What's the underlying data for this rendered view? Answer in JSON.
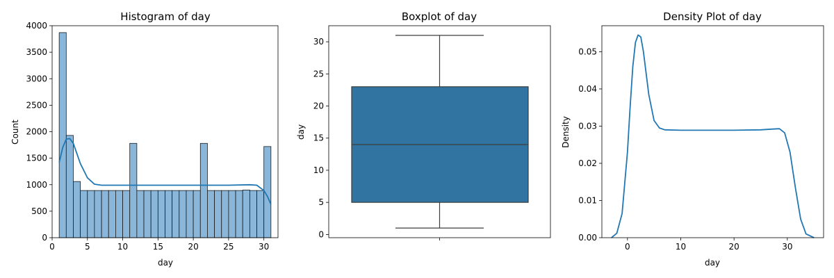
{
  "chart_data": [
    {
      "type": "bar",
      "title": "Histogram of day",
      "xlabel": "day",
      "ylabel": "Count",
      "xlim": [
        0,
        32
      ],
      "ylim": [
        0,
        4000
      ],
      "xticks": [
        0,
        5,
        10,
        15,
        20,
        25,
        30
      ],
      "yticks": [
        0,
        500,
        1000,
        1500,
        2000,
        2500,
        3000,
        3500,
        4000
      ],
      "bin_width": 1,
      "bins": [
        {
          "x": 1,
          "count": 3870
        },
        {
          "x": 2,
          "count": 1930
        },
        {
          "x": 3,
          "count": 1060
        },
        {
          "x": 4,
          "count": 890
        },
        {
          "x": 5,
          "count": 890
        },
        {
          "x": 6,
          "count": 890
        },
        {
          "x": 7,
          "count": 890
        },
        {
          "x": 8,
          "count": 890
        },
        {
          "x": 9,
          "count": 890
        },
        {
          "x": 10,
          "count": 890
        },
        {
          "x": 11,
          "count": 1780
        },
        {
          "x": 12,
          "count": 890
        },
        {
          "x": 13,
          "count": 890
        },
        {
          "x": 14,
          "count": 890
        },
        {
          "x": 15,
          "count": 890
        },
        {
          "x": 16,
          "count": 890
        },
        {
          "x": 17,
          "count": 890
        },
        {
          "x": 18,
          "count": 890
        },
        {
          "x": 19,
          "count": 890
        },
        {
          "x": 20,
          "count": 890
        },
        {
          "x": 21,
          "count": 1780
        },
        {
          "x": 22,
          "count": 890
        },
        {
          "x": 23,
          "count": 890
        },
        {
          "x": 24,
          "count": 890
        },
        {
          "x": 25,
          "count": 890
        },
        {
          "x": 26,
          "count": 890
        },
        {
          "x": 27,
          "count": 900
        },
        {
          "x": 28,
          "count": 890
        },
        {
          "x": 29,
          "count": 890
        },
        {
          "x": 30,
          "count": 1720
        }
      ],
      "kde": [
        {
          "x": 1.0,
          "y": 1420
        },
        {
          "x": 1.5,
          "y": 1700
        },
        {
          "x": 2.0,
          "y": 1860
        },
        {
          "x": 2.5,
          "y": 1870
        },
        {
          "x": 3.0,
          "y": 1780
        },
        {
          "x": 4.0,
          "y": 1400
        },
        {
          "x": 5.0,
          "y": 1130
        },
        {
          "x": 6.0,
          "y": 1010
        },
        {
          "x": 7.0,
          "y": 990
        },
        {
          "x": 10.0,
          "y": 990
        },
        {
          "x": 15.0,
          "y": 990
        },
        {
          "x": 20.0,
          "y": 990
        },
        {
          "x": 25.0,
          "y": 990
        },
        {
          "x": 28.0,
          "y": 1000
        },
        {
          "x": 29.0,
          "y": 990
        },
        {
          "x": 30.0,
          "y": 890
        },
        {
          "x": 30.5,
          "y": 780
        },
        {
          "x": 31.0,
          "y": 630
        }
      ],
      "bar_color": "#8ab6d9",
      "kde_color": "#1f77b4"
    },
    {
      "type": "box",
      "title": "Boxplot of day",
      "ylabel": "day",
      "ylim": [
        -0.5,
        32.5
      ],
      "yticks": [
        0,
        5,
        10,
        15,
        20,
        25,
        30
      ],
      "min": 1,
      "q1": 5,
      "median": 14,
      "q3": 23,
      "max": 31,
      "box_color": "#3274a1"
    },
    {
      "type": "line",
      "title": "Density Plot of day",
      "xlabel": "day",
      "ylabel": "Density",
      "xlim": [
        -4.8,
        36.8
      ],
      "ylim": [
        0,
        0.057
      ],
      "xticks": [
        0,
        10,
        20,
        30
      ],
      "yticks": [
        0.0,
        0.01,
        0.02,
        0.03,
        0.04,
        0.05
      ],
      "yticklabels": [
        "0.00",
        "0.01",
        "0.02",
        "0.03",
        "0.04",
        "0.05"
      ],
      "points": [
        {
          "x": -3.0,
          "y": 0.0
        },
        {
          "x": -2.0,
          "y": 0.0012
        },
        {
          "x": -1.0,
          "y": 0.0065
        },
        {
          "x": 0.0,
          "y": 0.023
        },
        {
          "x": 0.5,
          "y": 0.035
        },
        {
          "x": 1.0,
          "y": 0.046
        },
        {
          "x": 1.5,
          "y": 0.0525
        },
        {
          "x": 2.0,
          "y": 0.0545
        },
        {
          "x": 2.5,
          "y": 0.054
        },
        {
          "x": 3.0,
          "y": 0.05
        },
        {
          "x": 4.0,
          "y": 0.0385
        },
        {
          "x": 5.0,
          "y": 0.0315
        },
        {
          "x": 6.0,
          "y": 0.0295
        },
        {
          "x": 7.0,
          "y": 0.029
        },
        {
          "x": 10.0,
          "y": 0.0289
        },
        {
          "x": 15.0,
          "y": 0.0289
        },
        {
          "x": 20.0,
          "y": 0.0289
        },
        {
          "x": 25.0,
          "y": 0.029
        },
        {
          "x": 27.0,
          "y": 0.0292
        },
        {
          "x": 28.5,
          "y": 0.0293
        },
        {
          "x": 29.5,
          "y": 0.0282
        },
        {
          "x": 30.5,
          "y": 0.023
        },
        {
          "x": 31.5,
          "y": 0.0135
        },
        {
          "x": 32.5,
          "y": 0.005
        },
        {
          "x": 33.5,
          "y": 0.001
        },
        {
          "x": 35.0,
          "y": 0.0
        }
      ],
      "line_color": "#1f77b4"
    }
  ]
}
